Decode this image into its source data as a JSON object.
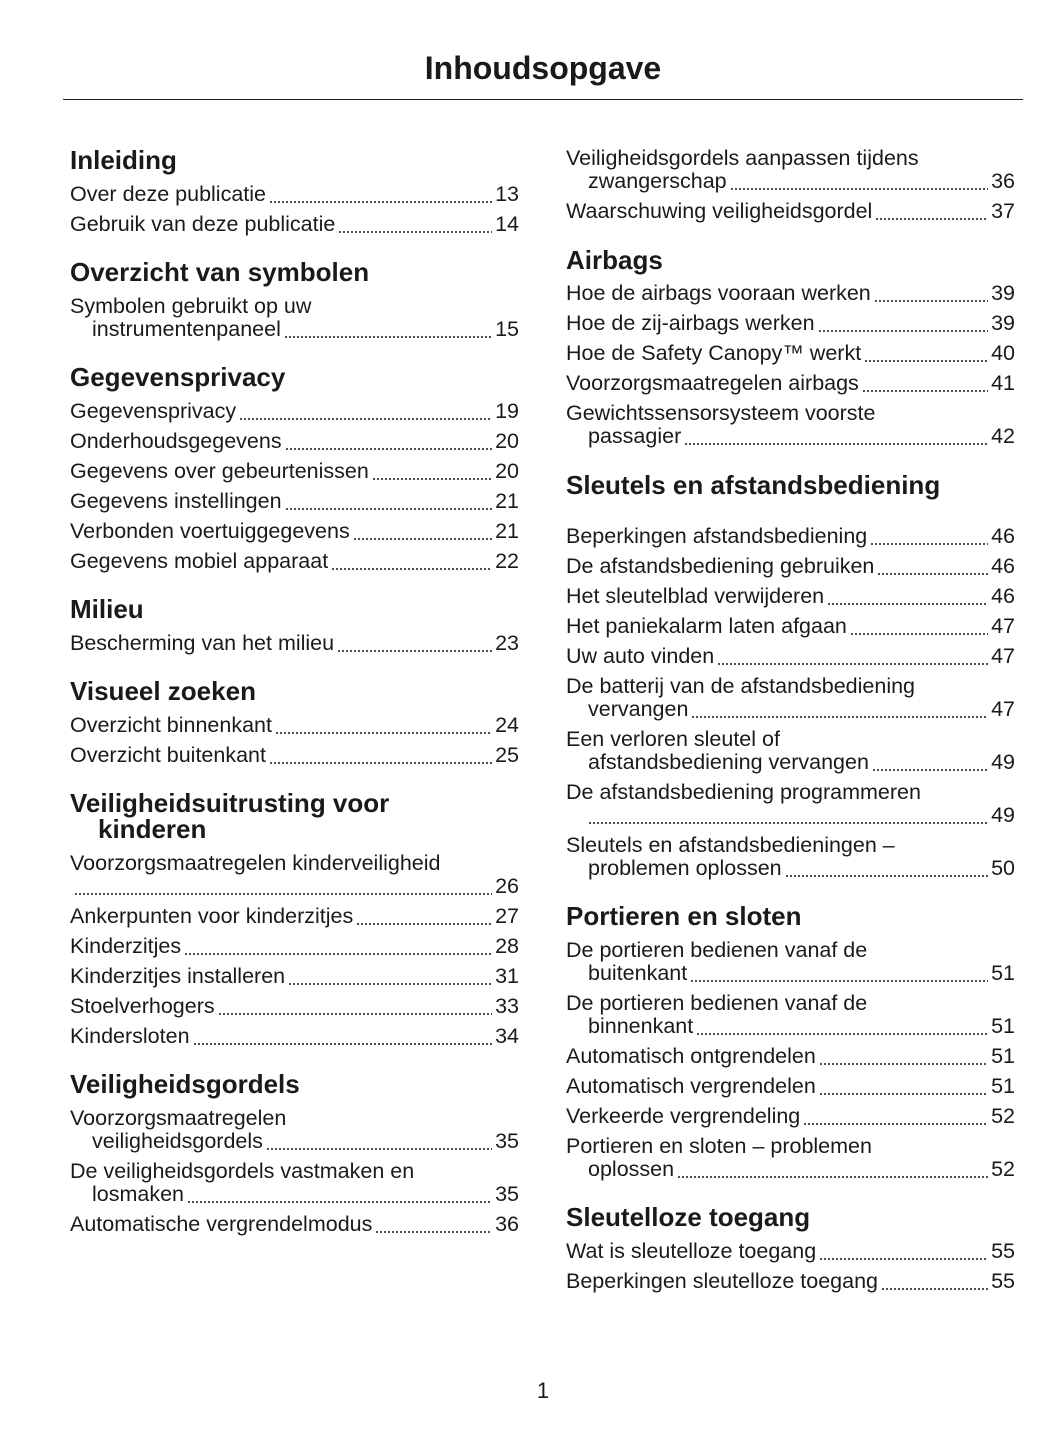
{
  "title": "Inhoudsopgave",
  "page_number": "1",
  "columns": [
    {
      "items": [
        {
          "type": "heading",
          "lines": [
            "Inleiding"
          ]
        },
        {
          "type": "entry",
          "lines": [
            "Over deze publicatie"
          ],
          "page": "13"
        },
        {
          "type": "entry",
          "lines": [
            "Gebruik van deze publicatie"
          ],
          "page": "14"
        },
        {
          "type": "heading",
          "lines": [
            "Overzicht van symbolen"
          ]
        },
        {
          "type": "entry",
          "lines": [
            "Symbolen gebruikt op uw",
            "instrumentenpaneel"
          ],
          "page": "15"
        },
        {
          "type": "heading",
          "lines": [
            "Gegevensprivacy"
          ]
        },
        {
          "type": "entry",
          "lines": [
            "Gegevensprivacy"
          ],
          "page": "19"
        },
        {
          "type": "entry",
          "lines": [
            "Onderhoudsgegevens"
          ],
          "page": "20"
        },
        {
          "type": "entry",
          "lines": [
            "Gegevens over gebeurtenissen"
          ],
          "page": "20"
        },
        {
          "type": "entry",
          "lines": [
            "Gegevens instellingen"
          ],
          "page": "21"
        },
        {
          "type": "entry",
          "lines": [
            "Verbonden voertuiggegevens"
          ],
          "page": "21"
        },
        {
          "type": "entry",
          "lines": [
            "Gegevens mobiel apparaat"
          ],
          "page": "22"
        },
        {
          "type": "heading",
          "lines": [
            "Milieu"
          ]
        },
        {
          "type": "entry",
          "lines": [
            "Bescherming van het milieu"
          ],
          "page": "23"
        },
        {
          "type": "heading",
          "lines": [
            "Visueel zoeken"
          ]
        },
        {
          "type": "entry",
          "lines": [
            "Overzicht binnenkant"
          ],
          "page": "24"
        },
        {
          "type": "entry",
          "lines": [
            "Overzicht buitenkant"
          ],
          "page": "25"
        },
        {
          "type": "heading",
          "lines": [
            "Veiligheidsuitrusting voor",
            "kinderen"
          ]
        },
        {
          "type": "entry",
          "lines": [
            "Voorzorgsmaatregelen kinderveiligheid",
            ""
          ],
          "page": "26",
          "flush": true
        },
        {
          "type": "entry",
          "lines": [
            "Ankerpunten voor kinderzitjes"
          ],
          "page": "27"
        },
        {
          "type": "entry",
          "lines": [
            "Kinderzitjes"
          ],
          "page": "28"
        },
        {
          "type": "entry",
          "lines": [
            "Kinderzitjes installeren"
          ],
          "page": "31"
        },
        {
          "type": "entry",
          "lines": [
            "Stoelverhogers"
          ],
          "page": "33"
        },
        {
          "type": "entry",
          "lines": [
            "Kindersloten"
          ],
          "page": "34"
        },
        {
          "type": "heading",
          "lines": [
            "Veiligheidsgordels"
          ]
        },
        {
          "type": "entry",
          "lines": [
            "Voorzorgsmaatregelen",
            "veiligheidsgordels"
          ],
          "page": "35"
        },
        {
          "type": "entry",
          "lines": [
            "De veiligheidsgordels vastmaken en",
            "losmaken"
          ],
          "page": "35"
        },
        {
          "type": "entry",
          "lines": [
            "Automatische vergrendelmodus"
          ],
          "page": "36"
        }
      ]
    },
    {
      "items": [
        {
          "type": "entry",
          "lines": [
            "Veiligheidsgordels aanpassen tijdens",
            "zwangerschap"
          ],
          "page": "36"
        },
        {
          "type": "entry",
          "lines": [
            "Waarschuwing veiligheidsgordel"
          ],
          "page": "37"
        },
        {
          "type": "heading",
          "lines": [
            "Airbags"
          ]
        },
        {
          "type": "entry",
          "lines": [
            "Hoe de airbags vooraan werken"
          ],
          "page": "39"
        },
        {
          "type": "entry",
          "lines": [
            "Hoe de zij-airbags werken"
          ],
          "page": "39"
        },
        {
          "type": "entry",
          "lines": [
            "Hoe de Safety Canopy™ werkt"
          ],
          "page": "40"
        },
        {
          "type": "entry",
          "lines": [
            "Voorzorgsmaatregelen airbags"
          ],
          "page": "41"
        },
        {
          "type": "entry",
          "lines": [
            "Gewichtssensorsysteem voorste",
            "passagier"
          ],
          "page": "42"
        },
        {
          "type": "heading",
          "lines": [
            "Sleutels en afstandsbediening"
          ]
        },
        {
          "type": "entry",
          "lines": [
            "Beperkingen afstandsbediening"
          ],
          "page": "46",
          "extra": true
        },
        {
          "type": "entry",
          "lines": [
            "De afstandsbediening gebruiken"
          ],
          "page": "46"
        },
        {
          "type": "entry",
          "lines": [
            "Het sleutelblad verwijderen"
          ],
          "page": "46"
        },
        {
          "type": "entry",
          "lines": [
            "Het paniekalarm laten afgaan"
          ],
          "page": "47"
        },
        {
          "type": "entry",
          "lines": [
            "Uw auto vinden"
          ],
          "page": "47"
        },
        {
          "type": "entry",
          "lines": [
            "De batterij van de afstandsbediening",
            "vervangen"
          ],
          "page": "47"
        },
        {
          "type": "entry",
          "lines": [
            "Een verloren sleutel of",
            "afstandsbediening vervangen"
          ],
          "page": "49"
        },
        {
          "type": "entry",
          "lines": [
            "De afstandsbediening programmeren",
            ""
          ],
          "page": "49"
        },
        {
          "type": "entry",
          "lines": [
            "Sleutels en afstandsbedieningen –",
            "problemen oplossen"
          ],
          "page": "50"
        },
        {
          "type": "heading",
          "lines": [
            "Portieren en sloten"
          ]
        },
        {
          "type": "entry",
          "lines": [
            "De portieren bedienen vanaf de",
            "buitenkant"
          ],
          "page": "51"
        },
        {
          "type": "entry",
          "lines": [
            "De portieren bedienen vanaf de",
            "binnenkant"
          ],
          "page": "51"
        },
        {
          "type": "entry",
          "lines": [
            "Automatisch ontgrendelen"
          ],
          "page": "51"
        },
        {
          "type": "entry",
          "lines": [
            "Automatisch vergrendelen"
          ],
          "page": "51"
        },
        {
          "type": "entry",
          "lines": [
            "Verkeerde vergrendeling"
          ],
          "page": "52"
        },
        {
          "type": "entry",
          "lines": [
            "Portieren en sloten – problemen",
            "oplossen"
          ],
          "page": "52"
        },
        {
          "type": "heading",
          "lines": [
            "Sleutelloze toegang"
          ]
        },
        {
          "type": "entry",
          "lines": [
            "Wat is sleutelloze toegang"
          ],
          "page": "55"
        },
        {
          "type": "entry",
          "lines": [
            "Beperkingen sleutelloze toegang"
          ],
          "page": "55"
        }
      ]
    }
  ]
}
